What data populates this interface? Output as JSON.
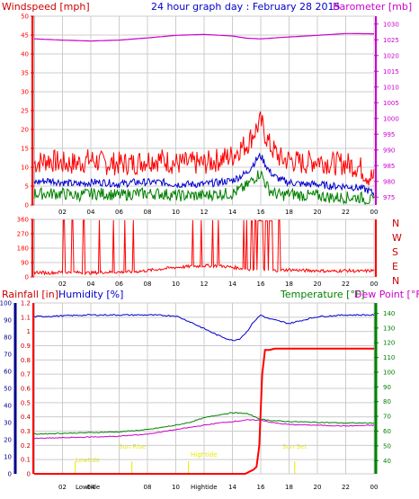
{
  "title": "24 hour graph day : February 28 2015",
  "colors": {
    "frame": "#808080",
    "grid": "#cccccc",
    "red": "#ff0000",
    "blue": "#0000cc",
    "green": "#008000",
    "magenta": "#cc00cc",
    "yellow": "#e8e800",
    "navy": "#00008b",
    "darkred": "#cc0000"
  },
  "chart_data": [
    {
      "type": "line",
      "panel": "wind",
      "left_label": "Windspeed [mph]",
      "right_label": "Barometer [mb]",
      "x_ticks": [
        "02",
        "04",
        "06",
        "08",
        "10",
        "12",
        "14",
        "16",
        "18",
        "20",
        "22",
        "00"
      ],
      "left_ticks": [
        "0",
        "5",
        "10",
        "15",
        "20",
        "25",
        "30",
        "35",
        "40",
        "45",
        "50"
      ],
      "right_ticks": [
        "975",
        "980",
        "985",
        "990",
        "995",
        "1000",
        "1005",
        "1010",
        "1015",
        "1020",
        "1025",
        "1030"
      ],
      "left_range": [
        0,
        50
      ],
      "right_range": [
        972.5,
        1032.5
      ],
      "grid": true,
      "series": [
        {
          "label": "gust",
          "color": "red",
          "axis": "left",
          "x": [
            0,
            1,
            2,
            3,
            4,
            5,
            6,
            7,
            8,
            9,
            10,
            11,
            12,
            13,
            14,
            14.5,
            15,
            15.5,
            15.8,
            16,
            16.3,
            16.6,
            17,
            17.5,
            18,
            19,
            20,
            21,
            22,
            23,
            23.5,
            24
          ],
          "y": [
            11,
            12,
            11,
            11,
            12,
            11,
            11,
            11,
            12,
            12,
            11,
            11,
            11,
            12,
            13,
            15,
            16,
            19,
            21,
            22,
            19,
            16,
            14,
            12,
            12,
            11,
            12,
            11,
            11,
            10,
            8,
            7
          ]
        },
        {
          "label": "speed",
          "color": "blue",
          "axis": "left",
          "x": [
            0,
            1,
            2,
            3,
            4,
            5,
            6,
            7,
            8,
            9,
            10,
            11,
            12,
            13,
            14,
            14.5,
            15,
            15.5,
            15.8,
            16,
            16.3,
            16.6,
            17,
            17.5,
            18,
            19,
            20,
            21,
            22,
            23,
            23.5,
            24
          ],
          "y": [
            6,
            6.5,
            6,
            5.5,
            6,
            6,
            5.5,
            6,
            6,
            6,
            5.5,
            5.5,
            5.5,
            6,
            6.5,
            7.5,
            8.5,
            11,
            12.5,
            13,
            11,
            9,
            7.5,
            6.5,
            6,
            5.5,
            5.5,
            5,
            5,
            4.5,
            4,
            3
          ]
        },
        {
          "label": "minimum",
          "color": "green",
          "axis": "left",
          "x": [
            0,
            1,
            2,
            3,
            4,
            5,
            6,
            7,
            8,
            9,
            10,
            11,
            12,
            13,
            14,
            14.5,
            15,
            15.5,
            15.8,
            16,
            16.3,
            16.6,
            17,
            17.5,
            18,
            19,
            20,
            21,
            22,
            23,
            23.5,
            24
          ],
          "y": [
            3,
            3,
            3,
            2.5,
            3,
            3,
            2.5,
            3,
            3,
            3,
            2.5,
            2.5,
            2.5,
            3,
            3,
            4,
            5,
            7,
            8,
            8.5,
            6,
            4,
            3,
            2.5,
            3,
            2.5,
            2.5,
            2,
            2,
            2,
            1.5,
            1
          ]
        },
        {
          "label": "barometer",
          "color": "magenta",
          "axis": "right",
          "x": [
            0,
            2,
            4,
            6,
            8,
            10,
            12,
            14,
            15,
            16,
            18,
            20,
            22,
            24
          ],
          "y": [
            1025.3,
            1024.9,
            1024.6,
            1024.9,
            1025.6,
            1026.4,
            1026.7,
            1026.2,
            1025.5,
            1025.3,
            1025.9,
            1026.4,
            1027.0,
            1026.9
          ]
        }
      ]
    },
    {
      "type": "line",
      "panel": "wind-direction",
      "left_ticks": [
        "0",
        "90",
        "180",
        "270",
        "360"
      ],
      "left_range": [
        0,
        360
      ],
      "right_labels": [
        "N",
        "W",
        "S",
        "E",
        "N"
      ],
      "x_ticks": [
        "02",
        "04",
        "06",
        "08",
        "10",
        "12",
        "14",
        "16",
        "18",
        "20",
        "22",
        "00"
      ],
      "grid": true,
      "series": [
        {
          "label": "direction",
          "color": "red",
          "x": [
            0,
            1,
            2,
            3,
            4,
            5,
            6,
            7,
            8,
            9,
            10,
            11,
            12,
            13,
            14,
            15,
            16,
            17,
            18,
            19,
            20,
            21,
            22,
            23,
            24
          ],
          "y": [
            30,
            25,
            30,
            28,
            25,
            30,
            30,
            32,
            40,
            50,
            60,
            65,
            70,
            70,
            60,
            50,
            45,
            40,
            45,
            40,
            40,
            35,
            40,
            35,
            40
          ]
        }
      ]
    },
    {
      "type": "line",
      "panel": "rain-humidity-temperature",
      "left_labels": [
        "Rainfall [in]",
        "Humidity [%]"
      ],
      "right_labels": [
        "Temperature [°F]",
        "Dew Point [°F]"
      ],
      "rain_ticks": [
        "0",
        "0.1",
        "0.2",
        "0.3",
        "0.4",
        "0.5",
        "0.6",
        "0.7",
        "0.8",
        "0.9",
        "1",
        "1.1",
        "1.2"
      ],
      "humidity_ticks": [
        "0",
        "10",
        "20",
        "30",
        "40",
        "50",
        "60",
        "70",
        "80",
        "90",
        "100"
      ],
      "temp_ticks": [
        "40",
        "50",
        "60",
        "70",
        "80",
        "90",
        "100",
        "110",
        "120",
        "130",
        "140"
      ],
      "x_ticks": [
        "02",
        "04",
        "06",
        "08",
        "10",
        "12",
        "14",
        "16",
        "18",
        "20",
        "22",
        "00"
      ],
      "rain_range": [
        0,
        1.2
      ],
      "humidity_range": [
        0,
        100
      ],
      "temp_range": [
        31,
        147
      ],
      "grid": true,
      "annotations": [
        "Lowtide",
        "Sun Rise",
        "Hightide",
        "Sun Set",
        "Lowtide",
        "Hightide"
      ],
      "series": [
        {
          "label": "rainfall",
          "color": "red",
          "axis": "rain",
          "x": [
            0,
            14.9,
            15.1,
            15.3,
            15.5,
            15.7,
            15.9,
            16.1,
            16.3,
            16.6,
            17,
            18,
            20,
            22,
            24
          ],
          "y": [
            0,
            0,
            0.01,
            0.02,
            0.03,
            0.05,
            0.2,
            0.7,
            0.87,
            0.87,
            0.88,
            0.88,
            0.88,
            0.88,
            0.88
          ]
        },
        {
          "label": "humidity",
          "color": "blue",
          "axis": "humidity",
          "x": [
            0,
            2,
            4,
            6,
            8,
            10,
            11,
            12,
            13,
            14,
            14.5,
            15,
            15.5,
            16,
            16.5,
            17,
            18,
            19,
            20,
            22,
            24
          ],
          "y": [
            92,
            92.5,
            93,
            93,
            93,
            92.5,
            89,
            85,
            81,
            78,
            79,
            83,
            89,
            93,
            91,
            90,
            88,
            90,
            92,
            93,
            93
          ]
        },
        {
          "label": "temperature",
          "color": "green",
          "axis": "temp",
          "x": [
            0,
            2,
            4,
            6,
            8,
            10,
            11,
            12,
            13,
            14,
            15,
            16,
            17,
            18,
            20,
            22,
            24
          ],
          "y": [
            58,
            58.5,
            59,
            59.5,
            61,
            64,
            66,
            69,
            71,
            72.5,
            72,
            68,
            67,
            66.5,
            66,
            65.5,
            65.5
          ]
        },
        {
          "label": "dew point",
          "color": "magenta",
          "axis": "temp",
          "x": [
            0,
            2,
            4,
            6,
            8,
            10,
            11,
            12,
            13,
            14,
            15,
            16,
            17,
            18,
            20,
            22,
            24
          ],
          "y": [
            55,
            55.5,
            56,
            56.5,
            58,
            61,
            62.5,
            64,
            65.5,
            66.5,
            67.5,
            67.5,
            65.5,
            64.5,
            64,
            63.5,
            64
          ]
        }
      ]
    }
  ]
}
